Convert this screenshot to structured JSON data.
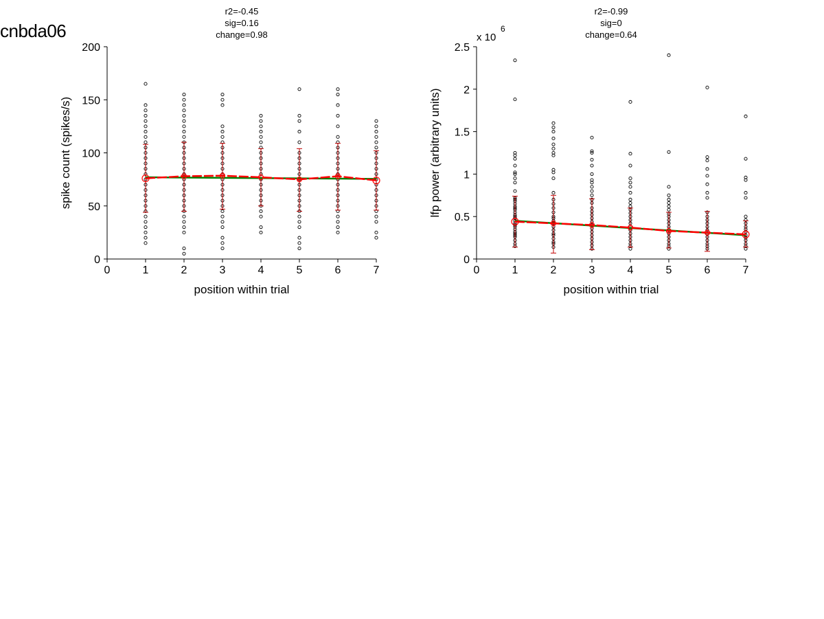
{
  "figure": {
    "title": "cnbda06"
  },
  "chart_data": [
    {
      "type": "scatter",
      "title_lines": [
        "r2=-0.45",
        "sig=0.16",
        "change=0.98"
      ],
      "xlabel": "position within trial",
      "ylabel": "spike count (spikes/s)",
      "exponent_label": "",
      "xlim": [
        0,
        7
      ],
      "ylim": [
        0,
        200
      ],
      "xticks": [
        0,
        1,
        2,
        3,
        4,
        5,
        6,
        7
      ],
      "yticks": [
        0,
        50,
        100,
        150,
        200
      ],
      "ytick_labels": [
        "0",
        "50",
        "100",
        "150",
        "200"
      ],
      "scatter": [
        {
          "x": 1,
          "y": [
            15,
            20,
            25,
            30,
            35,
            40,
            45,
            50,
            55,
            60,
            65,
            70,
            75,
            80,
            85,
            90,
            95,
            100,
            105,
            110,
            115,
            120,
            125,
            130,
            135,
            140,
            145,
            165
          ]
        },
        {
          "x": 2,
          "y": [
            5,
            10,
            25,
            30,
            35,
            40,
            45,
            50,
            55,
            60,
            65,
            70,
            75,
            80,
            85,
            90,
            95,
            100,
            105,
            110,
            115,
            120,
            125,
            130,
            135,
            140,
            145,
            150,
            155
          ]
        },
        {
          "x": 3,
          "y": [
            10,
            15,
            20,
            30,
            35,
            40,
            45,
            50,
            55,
            60,
            65,
            70,
            75,
            80,
            85,
            90,
            95,
            100,
            105,
            110,
            115,
            120,
            125,
            145,
            150,
            155
          ]
        },
        {
          "x": 4,
          "y": [
            25,
            30,
            40,
            45,
            50,
            55,
            60,
            65,
            70,
            75,
            80,
            85,
            90,
            95,
            100,
            105,
            110,
            115,
            120,
            125,
            130,
            135
          ]
        },
        {
          "x": 5,
          "y": [
            10,
            15,
            20,
            30,
            35,
            40,
            45,
            50,
            55,
            60,
            65,
            70,
            75,
            80,
            85,
            90,
            95,
            100,
            110,
            120,
            130,
            135,
            160
          ]
        },
        {
          "x": 6,
          "y": [
            25,
            30,
            35,
            40,
            45,
            50,
            55,
            60,
            65,
            70,
            75,
            80,
            85,
            90,
            95,
            100,
            105,
            110,
            115,
            125,
            135,
            145,
            155,
            160
          ]
        },
        {
          "x": 7,
          "y": [
            20,
            25,
            35,
            40,
            45,
            50,
            55,
            60,
            65,
            70,
            75,
            80,
            85,
            90,
            95,
            100,
            105,
            110,
            115,
            120,
            125,
            130
          ]
        }
      ],
      "mean_series": {
        "x": [
          1,
          2,
          3,
          4,
          5,
          6,
          7
        ],
        "y": [
          76,
          78,
          78.5,
          77,
          75,
          78,
          74
        ],
        "err_low": [
          44,
          45,
          47,
          50,
          45,
          46,
          46
        ],
        "err_high": [
          108,
          110,
          109,
          104,
          104,
          109,
          102
        ]
      },
      "fit_line": {
        "x": [
          1,
          7
        ],
        "y": [
          77,
          75.5
        ]
      },
      "colors": {
        "mean": "#ff0000",
        "fit": "#008000",
        "points": "#000000",
        "error": "#c00000"
      }
    },
    {
      "type": "scatter",
      "title_lines": [
        "r2=-0.99",
        "sig=0",
        "change=0.64"
      ],
      "xlabel": "position within trial",
      "ylabel": "lfp power (arbitrary units)",
      "exponent_label": "x 10",
      "exponent_power": "6",
      "xlim": [
        0,
        7
      ],
      "ylim": [
        0,
        2.5
      ],
      "xticks": [
        0,
        1,
        2,
        3,
        4,
        5,
        6,
        7
      ],
      "yticks": [
        0,
        0.5,
        1,
        1.5,
        2,
        2.5
      ],
      "ytick_labels": [
        "0",
        "0.5",
        "1",
        "1.5",
        "2",
        "2.5"
      ],
      "scatter": [
        {
          "x": 1,
          "y": [
            0.15,
            0.18,
            0.22,
            0.26,
            0.28,
            0.3,
            0.32,
            0.35,
            0.38,
            0.4,
            0.42,
            0.45,
            0.48,
            0.5,
            0.52,
            0.55,
            0.58,
            0.6,
            0.62,
            0.65,
            0.68,
            0.7,
            0.72,
            0.8,
            0.9,
            0.95,
            1.0,
            1.02,
            1.1,
            1.18,
            1.22,
            1.25,
            1.88,
            2.34
          ]
        },
        {
          "x": 2,
          "y": [
            0.14,
            0.18,
            0.2,
            0.24,
            0.28,
            0.3,
            0.34,
            0.38,
            0.42,
            0.45,
            0.48,
            0.5,
            0.55,
            0.6,
            0.65,
            0.7,
            0.78,
            0.95,
            1.02,
            1.05,
            1.22,
            1.25,
            1.3,
            1.35,
            1.42,
            1.5,
            1.55,
            1.6
          ]
        },
        {
          "x": 3,
          "y": [
            0.12,
            0.16,
            0.2,
            0.24,
            0.28,
            0.32,
            0.36,
            0.4,
            0.44,
            0.48,
            0.52,
            0.56,
            0.6,
            0.66,
            0.7,
            0.75,
            0.8,
            0.85,
            0.9,
            0.93,
            1.0,
            1.1,
            1.17,
            1.25,
            1.27,
            1.43
          ]
        },
        {
          "x": 4,
          "y": [
            0.12,
            0.15,
            0.18,
            0.22,
            0.26,
            0.3,
            0.34,
            0.38,
            0.42,
            0.46,
            0.5,
            0.54,
            0.58,
            0.62,
            0.66,
            0.7,
            0.78,
            0.85,
            0.9,
            0.95,
            1.1,
            1.24,
            1.85
          ]
        },
        {
          "x": 5,
          "y": [
            0.12,
            0.15,
            0.18,
            0.22,
            0.26,
            0.3,
            0.34,
            0.38,
            0.42,
            0.46,
            0.5,
            0.53,
            0.58,
            0.62,
            0.66,
            0.7,
            0.75,
            0.85,
            1.26,
            2.4
          ]
        },
        {
          "x": 6,
          "y": [
            0.12,
            0.15,
            0.18,
            0.22,
            0.26,
            0.3,
            0.34,
            0.38,
            0.42,
            0.46,
            0.5,
            0.55,
            0.72,
            0.78,
            0.88,
            0.98,
            1.06,
            1.16,
            1.2,
            2.02
          ]
        },
        {
          "x": 7,
          "y": [
            0.12,
            0.15,
            0.18,
            0.22,
            0.25,
            0.28,
            0.32,
            0.35,
            0.38,
            0.42,
            0.46,
            0.5,
            0.72,
            0.78,
            0.93,
            0.96,
            1.18,
            1.68
          ]
        }
      ],
      "mean_series": {
        "x": [
          1,
          2,
          3,
          4,
          5,
          6,
          7
        ],
        "y": [
          0.44,
          0.42,
          0.4,
          0.37,
          0.33,
          0.31,
          0.29
        ],
        "err_low": [
          0.14,
          0.07,
          0.11,
          0.14,
          0.13,
          0.09,
          0.14
        ],
        "err_high": [
          0.74,
          0.75,
          0.71,
          0.6,
          0.55,
          0.56,
          0.45
        ]
      },
      "fit_line": {
        "x": [
          1,
          7
        ],
        "y": [
          0.45,
          0.28
        ]
      },
      "colors": {
        "mean": "#ff0000",
        "fit": "#008000",
        "points": "#000000",
        "error": "#c00000"
      }
    }
  ]
}
